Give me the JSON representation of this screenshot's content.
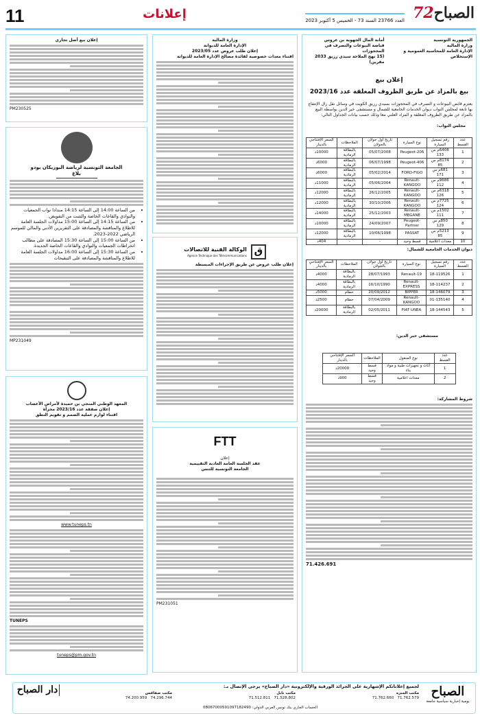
{
  "header": {
    "page_number": "11",
    "section": "إعلانات",
    "logo": "الصباح",
    "logo_badge": "72",
    "issue": "العدد 23766 السنة 73 - الخميس 5 أكتوبر 2023"
  },
  "main_ad": {
    "left_head": [
      "الجمهورية التونسية",
      "وزارة المالية",
      "الإدارة العامة للمحاسبة العمومية و الإستخلاص"
    ],
    "right_head": [
      "أمانة المال الجهوية بن عروس",
      "قباضة البيوعات والتصرف في المحجوزات",
      "(15 نهج الملاحة سيدي رزيق 2033 مقرين)"
    ],
    "title": "إعلان بيع",
    "subtitle": "بيع بالمزاد عن طريق الظروف المغلقة عدد 2023/16",
    "intro": "يعتزم قابض البيوعات و التصرف في المحجوزات بسيدي رزيق الكويت في وسائل نقل زال الإنتفاع بها تابعة لمجلس النواب ديوان الخدمات الجامعية للشمال و مستشفى خير الدين بواسطة البيع بالمزاد عن طريق الظروف المغلقة و المزاد العلني معا وذلك حسب بيانات الجداول التالي:",
    "t1_label": "مجلس النواب:",
    "t1_headers": [
      "عدد القسط",
      "رقم تسجيل السيارة",
      "نوع السيارة",
      "تاريخ أول جولان بالجولان",
      "الملاحظات",
      "السعر الإفتتاحي بالدينار"
    ],
    "t1_rows": [
      [
        "1",
        "6408م س 133",
        "Peugeot-206",
        "05/07/2008",
        "بالبطاقة الرمادية",
        "10000د"
      ],
      [
        "2",
        "8174م س 85",
        "Peugeot-406",
        "06/07/1998",
        "بالبطاقة الرمادية",
        "6000د"
      ],
      [
        "3",
        "681م س 171",
        "FORD-FIGO",
        "05/02/2014",
        "بالبطاقة الرمادية",
        "6000د"
      ],
      [
        "4",
        "9686م س 112",
        "Renault-KANGOO",
        "05/06/2004",
        "بالبطاقة الرمادية",
        "11000د"
      ],
      [
        "5",
        "6318م س 126",
        "Renault-KANGOO",
        "26/12/2005",
        "بالبطاقة الرمادية",
        "12000د"
      ],
      [
        "6",
        "7725م س 124",
        "Renault-KANGOO",
        "30/10/2006",
        "بالبطاقة الرمادية",
        "12000د"
      ],
      [
        "7",
        "1502م س 111",
        "Renault-MEGANE",
        "25/12/2003",
        "بالبطاقة الرمادية",
        "14000د"
      ],
      [
        "8",
        "850م س 129",
        "Peugeot-Partner",
        "24/09/2007",
        "بالبطاقة الرمادية",
        "10000د"
      ],
      [
        "9",
        "5213م س 85",
        "PASSAT",
        "10/06/1998",
        "بالبطاقة الرمادية",
        "12000د"
      ],
      [
        "10",
        "معدات اعلامية",
        "قسط وحيد",
        "-",
        "-",
        "404د"
      ]
    ],
    "t2_label": "ديوان الخدمات الجامعية للشمال:",
    "t2_rows": [
      [
        "1",
        "18-119526",
        "Renault-19",
        "28/07/1993",
        "بالبطاقة الرمادية",
        "4000د"
      ],
      [
        "2",
        "18-114237",
        "Renault-EXPRESS",
        "16/10/1990",
        "بالبطاقة الرمادية",
        "4000د"
      ],
      [
        "3",
        "18-146079",
        "BIPPER",
        "20/09/2012",
        "حطام",
        "5000د"
      ],
      [
        "4",
        "01-135140",
        "Renault-KANGOO",
        "07/04/2009",
        "حطام",
        "2500د"
      ],
      [
        "5",
        "18-144543",
        "FIAT UNEA",
        "02/05/2011",
        "بالبطاقة الرمادية",
        "20000د"
      ]
    ],
    "t3_label": "مستشفى خير الدين:",
    "t3_headers": [
      "عدد القسط",
      "نوع المنقول",
      "الملاحظات",
      "السعر الإفتتاحي بالدينار"
    ],
    "t3_rows": [
      [
        "1",
        "أثاث و تجهيزات طبية و مواد بناء",
        "قسط وحيد",
        "20000د"
      ],
      [
        "2",
        "معدات اعلامية",
        "قسط وحيد",
        "900د"
      ]
    ],
    "conditions_title": "شروط المشاركة:",
    "phone": "71.426.691"
  },
  "left_top": {
    "title": "إعلان بيع أصل تجاري",
    "ref": "PM230525"
  },
  "federation": {
    "title": "الجامعة التونسية لرياضة البوزيكان بودو",
    "subtitle": "بلاغ",
    "ref": "MP231049",
    "items": [
      "من الساعة 14:00 إلى الساعة 14:15 مندادا نواب الجمعيات والنوادي والقاعات الخاصة والتثبت من التفويض.",
      "من الساعة 14:15 إلى الساعة 15:00 مداولات الجلسة العامة للاطلاع والمناقشة والمصادقة على التقريرين الأدبي والمالي للموسم الرياضي 2022-2023.",
      "من الساعة 15:00 إلى الساعة 15:30 المصادقة على مطالب انخراطات الجمعيات والنوادي والقاعات الخاصة الجديدة.",
      "من الساعة 15:30 إلى الساعة 16:00 مداولات الجلسة العامة للاطلاع والمناقشة والمصادقة على التنقيحات"
    ]
  },
  "institute": {
    "title": "المعهد الوطني المنجي بن حميدة لأمراض الأعصاب",
    "line2": "إعلان صفقة عدد 2023/16 مجزأة",
    "line3": "اقتناء لوازم عملية الصمم و تقويم النطق",
    "site": "www.tuneps.tn",
    "brand": "TUNEPS",
    "email": "tuneps@pm.gov.tn"
  },
  "ministry": {
    "title": "وزارة المالية",
    "line2": "الإدارة العامة للديوانة",
    "line3": "إعلان طلب عروض عدد 2023/05",
    "line4": "اقتناء معدات خصوصية لفائدة مصالح الإدارة العامة للديوانة"
  },
  "telecom": {
    "name": "الوكالة الفنية للاتصالات",
    "name_fr": "Agence Technique des Télécommunications",
    "title": "إعلان طلب عروض عن طريق الإجراءات المبسطة"
  },
  "ftt": {
    "logo": "FTT",
    "label": "إعلان",
    "title": "عقد الجلسة العامة العادية التقييمية",
    "subtitle": "الجامعة التونسية للتنس",
    "ref": "PM231051"
  },
  "footer": {
    "brand": "الصباح",
    "tagline": "يومية إخبارية سياسية جامعة",
    "headline": "لجميع إعلاناتكم الإشهارية على الجرائد الورقية والإلكترونية «دار الصباح» يرجى الإتصال بـ:",
    "office1": "مكتب المنزه",
    "office1_tel": "71.762.579",
    "office1_fax": "71.762.660",
    "office2": "مكتب نابل",
    "office2_tel": "71.528.802",
    "office2_fax": "71.512.811",
    "office3": "مكتب صفاقس",
    "office3_tel": "74.296.744",
    "office3_fax": "74.200.959",
    "bank": "الحساب الجاري بنك تونس العربي الدولي: 08067000591097182490",
    "brand2": "دار الصباح"
  },
  "colors": {
    "accent_blue": "#6fd0f3",
    "section_red": "#c8102e"
  }
}
